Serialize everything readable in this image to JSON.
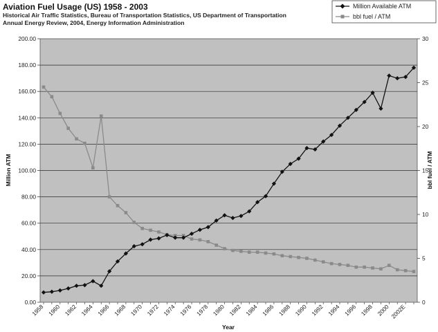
{
  "chart_data": {
    "type": "line",
    "title": "Aviation Fuel Usage (US) 1958 - 2003",
    "subtitle_lines": [
      "Historical Air Traffic Statistics, Bureau of Transportation Statistics, US Department of Transportation",
      "Annual Energy Review, 2004, Energy Information Administration"
    ],
    "xlabel": "Year",
    "ylabel_left": "Million ATM",
    "ylabel_right": "bbl fuel / ATM",
    "x": [
      1958,
      1959,
      1960,
      1961,
      1962,
      1963,
      1964,
      1965,
      1966,
      1967,
      1968,
      1969,
      1970,
      1971,
      1972,
      1973,
      1974,
      1975,
      1976,
      1977,
      1978,
      1979,
      1980,
      1981,
      1982,
      1983,
      1984,
      1985,
      1986,
      1987,
      1988,
      1989,
      1990,
      1991,
      1992,
      1993,
      1994,
      1995,
      1996,
      1997,
      1998,
      1999,
      2000,
      2001,
      2002,
      2003
    ],
    "x_tick_labels": [
      "1958",
      "1960",
      "1962",
      "1964",
      "1966",
      "1968",
      "1970",
      "1972",
      "1974",
      "1976",
      "1978",
      "1980",
      "1982",
      "1984",
      "1986",
      "1988",
      "1990",
      "1992",
      "1994",
      "1996",
      "1998",
      "2000",
      "2002E"
    ],
    "ylim_left": [
      0,
      200
    ],
    "y_ticks_left": [
      "0.00",
      "20.00",
      "40.00",
      "60.00",
      "80.00",
      "100.00",
      "120.00",
      "140.00",
      "160.00",
      "180.00",
      "200.00"
    ],
    "ylim_right": [
      0,
      30
    ],
    "y_ticks_right": [
      "0",
      "5",
      "10",
      "15",
      "20",
      "25",
      "30"
    ],
    "grid": true,
    "legend_position": "top-right",
    "series": [
      {
        "name": "Million Available ATM",
        "axis": "left",
        "color": "#111111",
        "marker": "diamond",
        "values": [
          7.5,
          8,
          9,
          10.5,
          12.5,
          13,
          16,
          12.5,
          23.5,
          31,
          37,
          42.5,
          44,
          47.5,
          48.5,
          51,
          49,
          49,
          52,
          55,
          57,
          62,
          66,
          64,
          65.5,
          69,
          76,
          80.5,
          90,
          99,
          105,
          109,
          117,
          116,
          122,
          127,
          134,
          140,
          146,
          152,
          159,
          147,
          172,
          170,
          171,
          178
        ]
      },
      {
        "name": "bbl fuel / ATM",
        "axis": "right",
        "color": "#8a8a8a",
        "marker": "square",
        "values": [
          24.5,
          23.4,
          21.5,
          19.8,
          18.6,
          18.1,
          15.3,
          21.2,
          12,
          11,
          10.2,
          9.1,
          8.4,
          8.2,
          8,
          7.7,
          7.6,
          7.6,
          7.2,
          7.1,
          6.9,
          6.5,
          6.1,
          5.9,
          5.8,
          5.7,
          5.7,
          5.6,
          5.5,
          5.3,
          5.2,
          5.1,
          5,
          4.8,
          4.6,
          4.4,
          4.3,
          4.2,
          4,
          4,
          3.9,
          3.8,
          4.2,
          3.7,
          3.6,
          3.5
        ]
      }
    ]
  }
}
